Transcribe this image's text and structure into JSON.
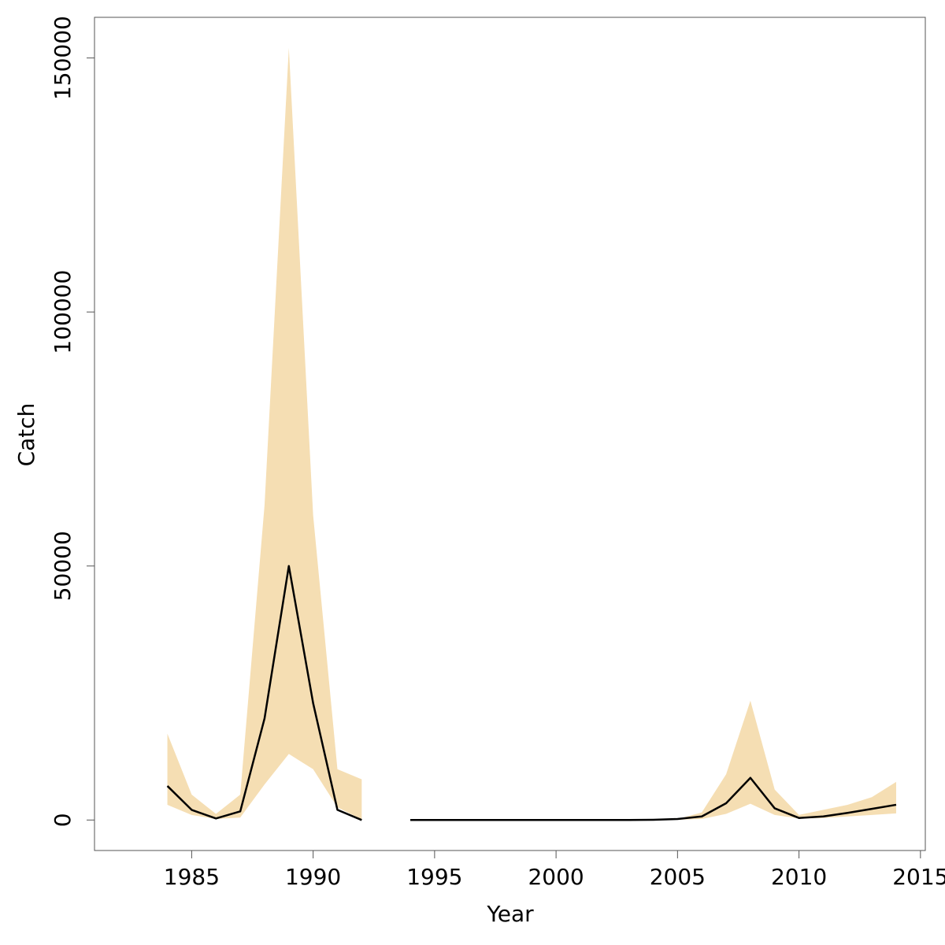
{
  "chart_data": {
    "type": "area",
    "title": "",
    "xlabel": "Year",
    "ylabel": "Catch",
    "xlim": [
      1981,
      2015.2
    ],
    "ylim": [
      -6000,
      158000
    ],
    "grid": false,
    "legend": "none",
    "xticks": [
      1985,
      1990,
      1995,
      2000,
      2005,
      2010,
      2015
    ],
    "yticks": [
      0,
      50000,
      100000,
      150000
    ],
    "band_color": "#F5DEB3",
    "line_color": "#000000",
    "band": {
      "x": [
        1984,
        1985,
        1986,
        1987,
        1988,
        1989,
        1990,
        1991,
        1992,
        null,
        2005,
        2006,
        2007,
        2008,
        2009,
        2010,
        2011,
        2012,
        2013,
        2014
      ],
      "upper": [
        17000,
        5000,
        1200,
        5000,
        62000,
        152000,
        60000,
        10000,
        8000,
        null,
        200,
        1500,
        9000,
        23500,
        6000,
        1000,
        2000,
        3000,
        4500,
        7500
      ],
      "lower": [
        3000,
        1000,
        200,
        500,
        7000,
        13000,
        10000,
        2500,
        100,
        null,
        50,
        200,
        1200,
        3200,
        1000,
        300,
        400,
        700,
        1000,
        1300
      ]
    },
    "series": [
      {
        "x": [
          1984,
          1985,
          1986,
          1987,
          1988,
          1989,
          1990,
          1991,
          1992,
          null,
          1994,
          1995,
          1996,
          1997,
          1998,
          1999,
          2000,
          2001,
          2002,
          2003,
          2004,
          2005,
          2006,
          2007,
          2008,
          2009,
          2010,
          2011,
          2012,
          2013,
          2014
        ],
        "values": [
          6700,
          2000,
          300,
          1700,
          20000,
          50000,
          23000,
          2000,
          0,
          null,
          0,
          0,
          0,
          0,
          0,
          0,
          0,
          0,
          0,
          0,
          50,
          200,
          700,
          3300,
          8300,
          2300,
          400,
          700,
          1400,
          2200,
          3000
        ]
      }
    ]
  }
}
